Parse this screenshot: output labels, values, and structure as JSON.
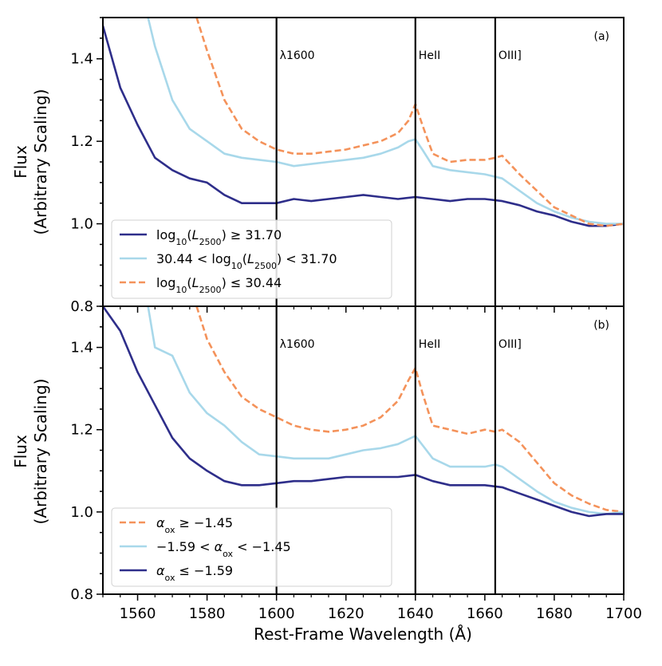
{
  "figure": {
    "xlabel": "Rest-Frame Wavelength (Å)",
    "ylabel_line1": "Flux",
    "ylabel_line2": "(Arbitrary Scaling)"
  },
  "chart_data": [
    {
      "type": "line",
      "panel_label": "(a)",
      "xlim": [
        1550,
        1700
      ],
      "ylim": [
        0.8,
        1.5
      ],
      "xticks": [
        1560,
        1580,
        1600,
        1620,
        1640,
        1660,
        1680,
        1700
      ],
      "yticks": [
        0.8,
        1.0,
        1.2,
        1.4
      ],
      "legend_position": "lower-left",
      "reference_lines": [
        {
          "x": 1600,
          "label": "λ1600"
        },
        {
          "x": 1640,
          "label": "HeII"
        },
        {
          "x": 1663,
          "label": "OIII]"
        }
      ],
      "series": [
        {
          "name": "log10(L2500) ≥ 31.70",
          "color": "#2e2e8a",
          "style": "solid",
          "x": [
            1550,
            1555,
            1560,
            1565,
            1570,
            1575,
            1580,
            1585,
            1590,
            1595,
            1600,
            1605,
            1610,
            1615,
            1620,
            1625,
            1630,
            1635,
            1640,
            1645,
            1650,
            1655,
            1660,
            1665,
            1670,
            1675,
            1680,
            1685,
            1690,
            1695,
            1700
          ],
          "y": [
            1.48,
            1.33,
            1.24,
            1.16,
            1.13,
            1.11,
            1.1,
            1.07,
            1.05,
            1.05,
            1.05,
            1.06,
            1.055,
            1.06,
            1.065,
            1.07,
            1.065,
            1.06,
            1.065,
            1.06,
            1.055,
            1.06,
            1.06,
            1.055,
            1.045,
            1.03,
            1.02,
            1.005,
            0.995,
            0.995,
            1.0
          ]
        },
        {
          "name": "30.44 < log10(L2500) < 31.70",
          "color": "#a8d8ea",
          "style": "solid",
          "x": [
            1563,
            1565,
            1570,
            1575,
            1580,
            1585,
            1590,
            1595,
            1600,
            1605,
            1610,
            1615,
            1620,
            1625,
            1630,
            1635,
            1638,
            1640,
            1642,
            1645,
            1650,
            1655,
            1660,
            1665,
            1670,
            1675,
            1680,
            1685,
            1690,
            1695,
            1700
          ],
          "y": [
            1.5,
            1.43,
            1.3,
            1.23,
            1.2,
            1.17,
            1.16,
            1.155,
            1.15,
            1.14,
            1.145,
            1.15,
            1.155,
            1.16,
            1.17,
            1.185,
            1.2,
            1.205,
            1.18,
            1.14,
            1.13,
            1.125,
            1.12,
            1.11,
            1.08,
            1.05,
            1.03,
            1.015,
            1.005,
            1.0,
            1.0
          ]
        },
        {
          "name": "log10(L2500) ≤ 30.44",
          "color": "#f4925a",
          "style": "dashed",
          "x": [
            1577,
            1580,
            1585,
            1590,
            1595,
            1600,
            1605,
            1610,
            1615,
            1620,
            1625,
            1630,
            1635,
            1638,
            1640,
            1642,
            1645,
            1650,
            1655,
            1660,
            1663,
            1665,
            1670,
            1675,
            1680,
            1685,
            1690,
            1695,
            1700
          ],
          "y": [
            1.5,
            1.42,
            1.3,
            1.23,
            1.2,
            1.18,
            1.17,
            1.17,
            1.175,
            1.18,
            1.19,
            1.2,
            1.22,
            1.25,
            1.29,
            1.24,
            1.17,
            1.15,
            1.155,
            1.155,
            1.16,
            1.165,
            1.12,
            1.08,
            1.04,
            1.02,
            1.0,
            0.995,
            1.0
          ]
        }
      ]
    },
    {
      "type": "line",
      "panel_label": "(b)",
      "xlim": [
        1550,
        1700
      ],
      "ylim": [
        0.8,
        1.5
      ],
      "xticks": [
        1560,
        1580,
        1600,
        1620,
        1640,
        1660,
        1680,
        1700
      ],
      "yticks": [
        0.8,
        1.0,
        1.2,
        1.4
      ],
      "legend_position": "lower-left",
      "reference_lines": [
        {
          "x": 1600,
          "label": "λ1600"
        },
        {
          "x": 1640,
          "label": "HeII"
        },
        {
          "x": 1663,
          "label": "OIII]"
        }
      ],
      "series": [
        {
          "name": "αox ≥ −1.45",
          "color": "#f4925a",
          "style": "dashed",
          "x": [
            1577,
            1580,
            1585,
            1590,
            1595,
            1600,
            1605,
            1610,
            1615,
            1620,
            1625,
            1630,
            1635,
            1638,
            1640,
            1642,
            1645,
            1650,
            1655,
            1660,
            1663,
            1665,
            1670,
            1675,
            1680,
            1685,
            1690,
            1695,
            1700
          ],
          "y": [
            1.5,
            1.42,
            1.34,
            1.28,
            1.25,
            1.23,
            1.21,
            1.2,
            1.195,
            1.2,
            1.21,
            1.23,
            1.27,
            1.32,
            1.35,
            1.29,
            1.21,
            1.2,
            1.19,
            1.2,
            1.195,
            1.2,
            1.17,
            1.12,
            1.07,
            1.04,
            1.02,
            1.005,
            1.0
          ]
        },
        {
          "name": "−1.59 < αox < −1.45",
          "color": "#a8d8ea",
          "style": "solid",
          "x": [
            1563,
            1565,
            1570,
            1575,
            1580,
            1585,
            1590,
            1595,
            1600,
            1605,
            1610,
            1615,
            1620,
            1625,
            1630,
            1635,
            1640,
            1645,
            1650,
            1655,
            1660,
            1663,
            1665,
            1670,
            1675,
            1680,
            1685,
            1690,
            1695,
            1700
          ],
          "y": [
            1.5,
            1.4,
            1.38,
            1.29,
            1.24,
            1.21,
            1.17,
            1.14,
            1.135,
            1.13,
            1.13,
            1.13,
            1.14,
            1.15,
            1.155,
            1.165,
            1.185,
            1.13,
            1.11,
            1.11,
            1.11,
            1.115,
            1.11,
            1.08,
            1.05,
            1.025,
            1.01,
            1.0,
            0.995,
            1.0
          ]
        },
        {
          "name": "αox ≤ −1.59",
          "color": "#2e2e8a",
          "style": "solid",
          "x": [
            1550,
            1555,
            1560,
            1565,
            1570,
            1575,
            1580,
            1585,
            1590,
            1595,
            1600,
            1605,
            1610,
            1615,
            1620,
            1625,
            1630,
            1635,
            1640,
            1645,
            1650,
            1655,
            1660,
            1665,
            1670,
            1675,
            1680,
            1685,
            1690,
            1695,
            1700
          ],
          "y": [
            1.5,
            1.44,
            1.34,
            1.26,
            1.18,
            1.13,
            1.1,
            1.075,
            1.065,
            1.065,
            1.07,
            1.075,
            1.075,
            1.08,
            1.085,
            1.085,
            1.085,
            1.085,
            1.09,
            1.075,
            1.065,
            1.065,
            1.065,
            1.06,
            1.045,
            1.03,
            1.015,
            1.0,
            0.99,
            0.995,
            0.995
          ]
        }
      ]
    }
  ]
}
